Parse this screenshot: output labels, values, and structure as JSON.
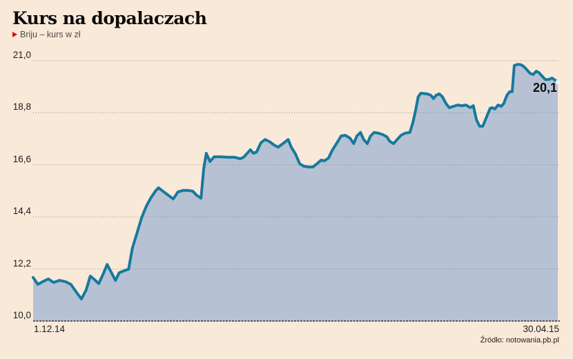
{
  "header": {
    "title": "Kurs na dopalaczach",
    "subtitle": "Briju – kurs w zł"
  },
  "source": "Źródło: notowania.pb.pl",
  "colors": {
    "background": "#f9e9d8",
    "area_fill": "#b6c2d4",
    "line": "#17799f",
    "gridline": "#8c8275",
    "baseline": "#2e2a25",
    "accent_red": "#e30613",
    "endpoint_dot": "#edf3f6",
    "text": "#1b1b1b"
  },
  "chart_data": {
    "type": "area",
    "title": "Kurs na dopalaczach",
    "series_name": "Briju – kurs w zł",
    "ylabel": "kurs w zł",
    "ylim": [
      10.0,
      21.0
    ],
    "y_ticks": [
      "21,0",
      "18,8",
      "16,6",
      "14,4",
      "12,2",
      "10,0"
    ],
    "y_tick_values": [
      21.0,
      18.8,
      16.6,
      14.4,
      12.2,
      10.0
    ],
    "x_ticks": [
      "1.12.14",
      "30.04.15"
    ],
    "x_start": "1.12.14",
    "x_end": "30.04.15",
    "grid": "dotted-horizontal",
    "legend_position": "none",
    "last_value": 20.1,
    "last_value_label": "20,1",
    "points": [
      [
        0.0,
        11.84
      ],
      [
        0.009,
        11.55
      ],
      [
        0.018,
        11.66
      ],
      [
        0.029,
        11.78
      ],
      [
        0.039,
        11.63
      ],
      [
        0.05,
        11.72
      ],
      [
        0.062,
        11.66
      ],
      [
        0.072,
        11.55
      ],
      [
        0.083,
        11.2
      ],
      [
        0.092,
        10.93
      ],
      [
        0.101,
        11.31
      ],
      [
        0.109,
        11.9
      ],
      [
        0.117,
        11.75
      ],
      [
        0.125,
        11.58
      ],
      [
        0.134,
        12.01
      ],
      [
        0.141,
        12.39
      ],
      [
        0.15,
        12.01
      ],
      [
        0.157,
        11.72
      ],
      [
        0.164,
        12.04
      ],
      [
        0.174,
        12.13
      ],
      [
        0.182,
        12.19
      ],
      [
        0.189,
        13.06
      ],
      [
        0.197,
        13.65
      ],
      [
        0.207,
        14.38
      ],
      [
        0.216,
        14.87
      ],
      [
        0.224,
        15.19
      ],
      [
        0.233,
        15.49
      ],
      [
        0.239,
        15.63
      ],
      [
        0.249,
        15.46
      ],
      [
        0.258,
        15.31
      ],
      [
        0.267,
        15.16
      ],
      [
        0.276,
        15.46
      ],
      [
        0.286,
        15.52
      ],
      [
        0.295,
        15.52
      ],
      [
        0.304,
        15.49
      ],
      [
        0.312,
        15.31
      ],
      [
        0.32,
        15.19
      ],
      [
        0.325,
        16.42
      ],
      [
        0.33,
        17.09
      ],
      [
        0.337,
        16.74
      ],
      [
        0.345,
        16.94
      ],
      [
        0.358,
        16.94
      ],
      [
        0.371,
        16.92
      ],
      [
        0.384,
        16.92
      ],
      [
        0.395,
        16.86
      ],
      [
        0.401,
        16.92
      ],
      [
        0.408,
        17.09
      ],
      [
        0.414,
        17.24
      ],
      [
        0.42,
        17.09
      ],
      [
        0.426,
        17.15
      ],
      [
        0.434,
        17.53
      ],
      [
        0.442,
        17.67
      ],
      [
        0.45,
        17.59
      ],
      [
        0.459,
        17.44
      ],
      [
        0.467,
        17.35
      ],
      [
        0.476,
        17.5
      ],
      [
        0.486,
        17.67
      ],
      [
        0.492,
        17.35
      ],
      [
        0.5,
        17.06
      ],
      [
        0.508,
        16.65
      ],
      [
        0.516,
        16.54
      ],
      [
        0.525,
        16.51
      ],
      [
        0.533,
        16.51
      ],
      [
        0.541,
        16.65
      ],
      [
        0.549,
        16.8
      ],
      [
        0.555,
        16.77
      ],
      [
        0.563,
        16.89
      ],
      [
        0.57,
        17.21
      ],
      [
        0.579,
        17.53
      ],
      [
        0.587,
        17.82
      ],
      [
        0.595,
        17.85
      ],
      [
        0.604,
        17.73
      ],
      [
        0.611,
        17.5
      ],
      [
        0.617,
        17.82
      ],
      [
        0.624,
        17.97
      ],
      [
        0.63,
        17.67
      ],
      [
        0.637,
        17.5
      ],
      [
        0.643,
        17.82
      ],
      [
        0.65,
        17.97
      ],
      [
        0.658,
        17.94
      ],
      [
        0.666,
        17.88
      ],
      [
        0.674,
        17.79
      ],
      [
        0.68,
        17.59
      ],
      [
        0.687,
        17.5
      ],
      [
        0.693,
        17.65
      ],
      [
        0.701,
        17.85
      ],
      [
        0.709,
        17.94
      ],
      [
        0.718,
        17.97
      ],
      [
        0.724,
        18.4
      ],
      [
        0.729,
        18.9
      ],
      [
        0.734,
        19.48
      ],
      [
        0.739,
        19.63
      ],
      [
        0.751,
        19.6
      ],
      [
        0.758,
        19.54
      ],
      [
        0.763,
        19.4
      ],
      [
        0.768,
        19.54
      ],
      [
        0.774,
        19.6
      ],
      [
        0.78,
        19.48
      ],
      [
        0.787,
        19.19
      ],
      [
        0.793,
        19.02
      ],
      [
        0.801,
        19.07
      ],
      [
        0.809,
        19.13
      ],
      [
        0.817,
        19.1
      ],
      [
        0.825,
        19.13
      ],
      [
        0.833,
        19.02
      ],
      [
        0.839,
        19.1
      ],
      [
        0.845,
        18.5
      ],
      [
        0.851,
        18.23
      ],
      [
        0.857,
        18.23
      ],
      [
        0.864,
        18.61
      ],
      [
        0.871,
        18.99
      ],
      [
        0.875,
        19.02
      ],
      [
        0.88,
        18.96
      ],
      [
        0.886,
        19.13
      ],
      [
        0.892,
        19.07
      ],
      [
        0.897,
        19.19
      ],
      [
        0.903,
        19.54
      ],
      [
        0.908,
        19.69
      ],
      [
        0.913,
        19.69
      ],
      [
        0.917,
        20.8
      ],
      [
        0.924,
        20.85
      ],
      [
        0.93,
        20.83
      ],
      [
        0.936,
        20.74
      ],
      [
        0.941,
        20.62
      ],
      [
        0.947,
        20.47
      ],
      [
        0.953,
        20.42
      ],
      [
        0.959,
        20.56
      ],
      [
        0.964,
        20.5
      ],
      [
        0.971,
        20.33
      ],
      [
        0.976,
        20.21
      ],
      [
        0.983,
        20.21
      ],
      [
        0.989,
        20.27
      ],
      [
        1.0,
        20.1
      ]
    ]
  }
}
